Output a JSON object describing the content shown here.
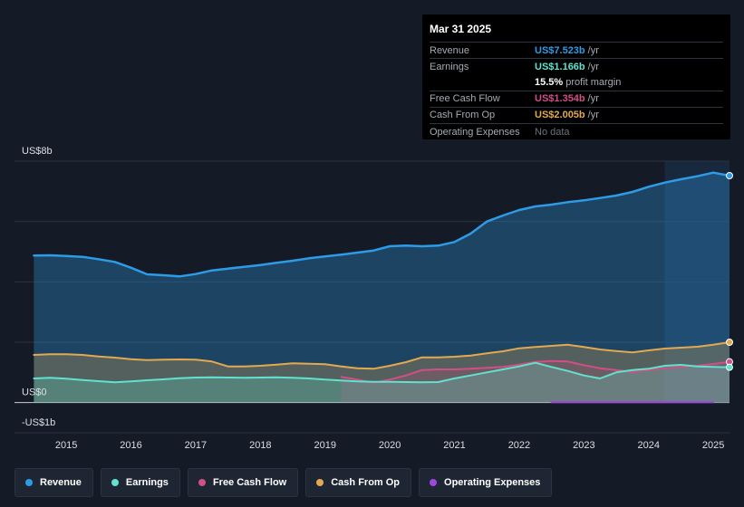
{
  "colors": {
    "revenue": "#2e9be6",
    "earnings": "#5fe3cf",
    "fcf": "#d24f86",
    "cfo": "#e3a950",
    "opex": "#9f46e0",
    "grid": "#2a3140",
    "axis_text": "#dcdfe4"
  },
  "tooltip": {
    "date": "Mar 31 2025",
    "rows": [
      {
        "label": "Revenue",
        "value": "US$7.523b",
        "unit": "/yr"
      },
      {
        "label": "Earnings",
        "value": "US$1.166b",
        "unit": "/yr"
      },
      {
        "label": "",
        "value": "15.5%",
        "unit": "profit margin"
      },
      {
        "label": "Free Cash Flow",
        "value": "US$1.354b",
        "unit": "/yr"
      },
      {
        "label": "Cash From Op",
        "value": "US$2.005b",
        "unit": "/yr"
      },
      {
        "label": "Operating Expenses",
        "value": "No data",
        "unit": ""
      }
    ]
  },
  "legend": [
    {
      "label": "Revenue"
    },
    {
      "label": "Earnings"
    },
    {
      "label": "Free Cash Flow"
    },
    {
      "label": "Cash From Op"
    },
    {
      "label": "Operating Expenses"
    }
  ],
  "chart_data": {
    "type": "line",
    "title": "",
    "xlabel": "",
    "ylabel": "",
    "ylim": [
      -1,
      8
    ],
    "xlim": [
      2014.2,
      2025.25
    ],
    "y_tick_labels": [
      {
        "value": 8,
        "label": "US$8b"
      },
      {
        "value": 0,
        "label": "US$0"
      },
      {
        "value": -1,
        "label": "-US$1b"
      }
    ],
    "x_ticks": [
      2015,
      2016,
      2017,
      2018,
      2019,
      2020,
      2021,
      2022,
      2023,
      2024,
      2025
    ],
    "x_tick_labels": [
      "2015",
      "2016",
      "2017",
      "2018",
      "2019",
      "2020",
      "2021",
      "2022",
      "2023",
      "2024",
      "2025"
    ],
    "forecast_start": 2024.25,
    "series": [
      {
        "name": "Revenue",
        "key": "revenue",
        "x": [
          2014.5,
          2014.75,
          2015.0,
          2015.25,
          2015.5,
          2015.75,
          2016.0,
          2016.25,
          2016.5,
          2016.75,
          2017.0,
          2017.25,
          2017.5,
          2017.75,
          2018.0,
          2018.25,
          2018.5,
          2018.75,
          2019.0,
          2019.25,
          2019.5,
          2019.75,
          2020.0,
          2020.25,
          2020.5,
          2020.75,
          2021.0,
          2021.25,
          2021.5,
          2021.75,
          2022.0,
          2022.25,
          2022.5,
          2022.75,
          2023.0,
          2023.25,
          2023.5,
          2023.75,
          2024.0,
          2024.25,
          2024.5,
          2024.75,
          2025.0,
          2025.25
        ],
        "values": [
          4.87,
          4.88,
          4.86,
          4.83,
          4.75,
          4.66,
          4.47,
          4.25,
          4.22,
          4.18,
          4.26,
          4.38,
          4.44,
          4.5,
          4.56,
          4.63,
          4.7,
          4.78,
          4.84,
          4.9,
          4.97,
          5.04,
          5.18,
          5.2,
          5.18,
          5.2,
          5.32,
          5.6,
          6.0,
          6.2,
          6.38,
          6.5,
          6.56,
          6.64,
          6.7,
          6.78,
          6.86,
          6.98,
          7.15,
          7.29,
          7.4,
          7.5,
          7.62,
          7.52
        ]
      },
      {
        "name": "Earnings",
        "key": "earnings",
        "x": [
          2014.5,
          2014.75,
          2015.0,
          2015.25,
          2015.5,
          2015.75,
          2016.0,
          2016.25,
          2016.5,
          2016.75,
          2017.0,
          2017.25,
          2017.5,
          2017.75,
          2018.0,
          2018.25,
          2018.5,
          2018.75,
          2019.0,
          2019.25,
          2019.5,
          2019.75,
          2020.0,
          2020.25,
          2020.5,
          2020.75,
          2021.0,
          2021.25,
          2021.5,
          2021.75,
          2022.0,
          2022.25,
          2022.5,
          2022.75,
          2023.0,
          2023.25,
          2023.5,
          2023.75,
          2024.0,
          2024.25,
          2024.5,
          2024.75,
          2025.0,
          2025.25
        ],
        "values": [
          0.8,
          0.82,
          0.79,
          0.75,
          0.71,
          0.67,
          0.7,
          0.74,
          0.77,
          0.81,
          0.83,
          0.84,
          0.83,
          0.82,
          0.83,
          0.84,
          0.82,
          0.8,
          0.76,
          0.73,
          0.7,
          0.69,
          0.69,
          0.68,
          0.67,
          0.68,
          0.8,
          0.9,
          1.0,
          1.1,
          1.2,
          1.32,
          1.18,
          1.05,
          0.9,
          0.8,
          1.0,
          1.08,
          1.12,
          1.22,
          1.25,
          1.2,
          1.18,
          1.17
        ]
      },
      {
        "name": "Free Cash Flow",
        "key": "fcf",
        "x": [
          2019.25,
          2019.5,
          2019.75,
          2020.0,
          2020.25,
          2020.5,
          2020.75,
          2021.0,
          2021.25,
          2021.5,
          2021.75,
          2022.0,
          2022.25,
          2022.5,
          2022.75,
          2023.0,
          2023.25,
          2023.5,
          2023.75,
          2024.0,
          2024.25,
          2024.5,
          2024.75,
          2025.0,
          2025.25
        ],
        "values": [
          0.85,
          0.76,
          0.66,
          0.76,
          0.9,
          1.08,
          1.1,
          1.1,
          1.12,
          1.15,
          1.18,
          1.26,
          1.35,
          1.38,
          1.36,
          1.24,
          1.14,
          1.08,
          1.02,
          1.08,
          1.14,
          1.18,
          1.22,
          1.28,
          1.35
        ]
      },
      {
        "name": "Cash From Op",
        "key": "cfo",
        "x": [
          2014.5,
          2014.75,
          2015.0,
          2015.25,
          2015.5,
          2015.75,
          2016.0,
          2016.25,
          2016.5,
          2016.75,
          2017.0,
          2017.25,
          2017.5,
          2017.75,
          2018.0,
          2018.25,
          2018.5,
          2018.75,
          2019.0,
          2019.25,
          2019.5,
          2019.75,
          2020.0,
          2020.25,
          2020.5,
          2020.75,
          2021.0,
          2021.25,
          2021.5,
          2021.75,
          2022.0,
          2022.25,
          2022.5,
          2022.75,
          2023.0,
          2023.25,
          2023.5,
          2023.75,
          2024.0,
          2024.25,
          2024.5,
          2024.75,
          2025.0,
          2025.25
        ],
        "values": [
          1.58,
          1.6,
          1.6,
          1.58,
          1.53,
          1.49,
          1.44,
          1.41,
          1.42,
          1.43,
          1.42,
          1.36,
          1.2,
          1.2,
          1.22,
          1.26,
          1.3,
          1.29,
          1.27,
          1.2,
          1.14,
          1.12,
          1.22,
          1.34,
          1.5,
          1.5,
          1.52,
          1.56,
          1.63,
          1.7,
          1.8,
          1.84,
          1.88,
          1.92,
          1.84,
          1.76,
          1.71,
          1.66,
          1.73,
          1.79,
          1.82,
          1.85,
          1.92,
          2.0
        ]
      },
      {
        "name": "Operating Expenses",
        "key": "opex",
        "x": [
          2022.5,
          2023.0,
          2023.5,
          2024.0,
          2024.5,
          2025.0
        ],
        "values": [
          0.01,
          0.01,
          0.01,
          0.01,
          0.01,
          0.01
        ]
      }
    ]
  }
}
